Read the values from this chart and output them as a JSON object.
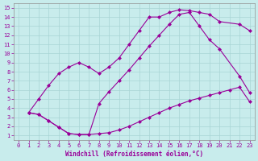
{
  "background_color": "#c8ecec",
  "grid_color": "#a8d4d4",
  "line_color": "#990099",
  "xlabel": "Windchill (Refroidissement éolien,°C)",
  "xlim": [
    -0.5,
    23.5
  ],
  "ylim": [
    0.5,
    15.5
  ],
  "xticks": [
    0,
    1,
    2,
    3,
    4,
    5,
    6,
    7,
    8,
    9,
    10,
    11,
    12,
    13,
    14,
    15,
    16,
    17,
    18,
    19,
    20,
    21,
    22,
    23
  ],
  "yticks": [
    1,
    2,
    3,
    4,
    5,
    6,
    7,
    8,
    9,
    10,
    11,
    12,
    13,
    14,
    15
  ],
  "line1_x": [
    1,
    2,
    3,
    4,
    5,
    6,
    7,
    8,
    9,
    10,
    11,
    12,
    13,
    14,
    15,
    16,
    17,
    18,
    19,
    20,
    21,
    22,
    23
  ],
  "line1_y": [
    3.5,
    3.3,
    2.6,
    1.9,
    1.2,
    1.1,
    1.1,
    1.2,
    1.3,
    1.6,
    2.0,
    2.5,
    3.0,
    3.5,
    4.0,
    4.4,
    4.8,
    5.1,
    5.4,
    5.7,
    6.0,
    6.3,
    4.7
  ],
  "line2_x": [
    1,
    2,
    3,
    4,
    5,
    6,
    7,
    8,
    9,
    10,
    11,
    12,
    13,
    14,
    15,
    16,
    17,
    18,
    19,
    20,
    22,
    23
  ],
  "line2_y": [
    3.5,
    3.3,
    2.6,
    1.9,
    1.2,
    1.1,
    1.1,
    4.5,
    5.8,
    7.0,
    8.2,
    9.5,
    10.8,
    12.0,
    13.2,
    14.3,
    14.5,
    13.0,
    11.5,
    10.5,
    7.5,
    5.7
  ],
  "line3_x": [
    1,
    2,
    3,
    4,
    5,
    6,
    7,
    8,
    9,
    10,
    11,
    12,
    13,
    14,
    15,
    16,
    17,
    18,
    19,
    20,
    22,
    23
  ],
  "line3_y": [
    3.5,
    5.0,
    6.5,
    7.8,
    8.5,
    9.0,
    8.5,
    7.8,
    8.5,
    9.5,
    11.0,
    12.5,
    14.0,
    14.0,
    14.5,
    14.8,
    14.7,
    14.5,
    14.3,
    13.5,
    13.2,
    12.5
  ]
}
